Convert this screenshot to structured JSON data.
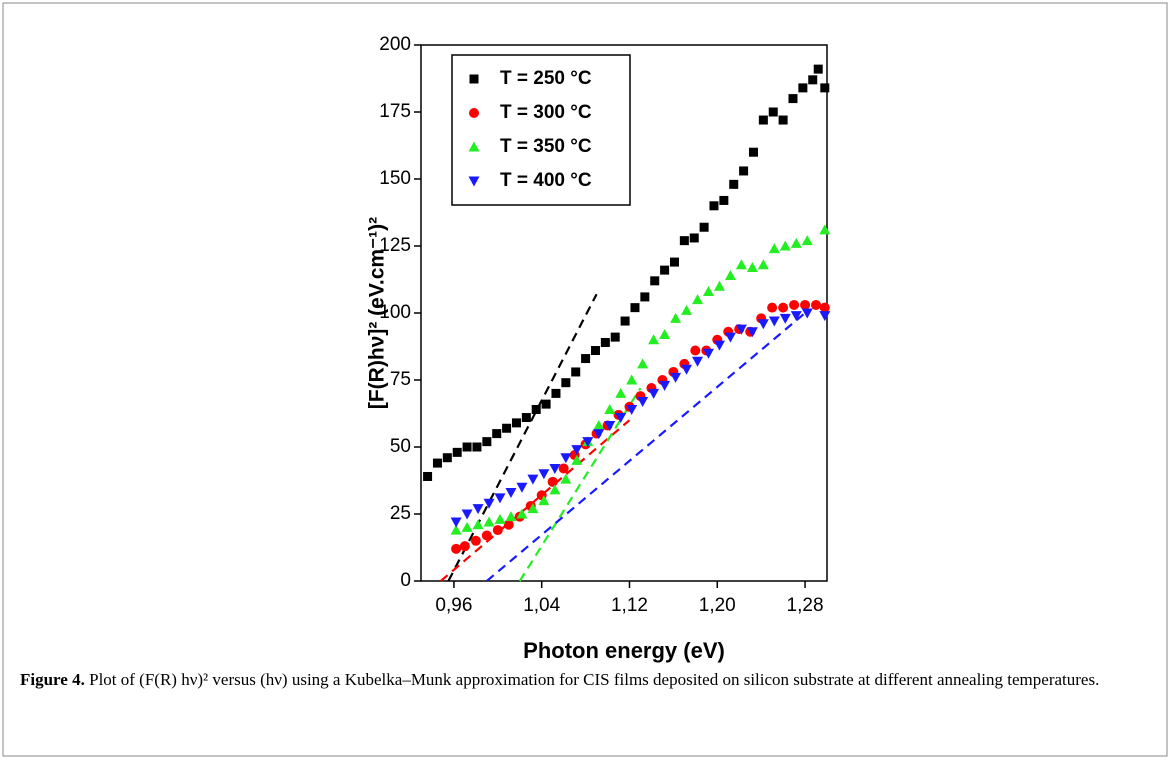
{
  "chart_data": {
    "type": "scatter",
    "x_label": "Photon energy (eV)",
    "y_label": "[F(R)hν]² (eV.cm⁻¹)²",
    "xlim": [
      0.93,
      1.3
    ],
    "ylim": [
      0,
      200
    ],
    "xticks": [
      {
        "value": 0.96,
        "label": "0,96"
      },
      {
        "value": 1.04,
        "label": "1,04"
      },
      {
        "value": 1.12,
        "label": "1,12"
      },
      {
        "value": 1.2,
        "label": "1,20"
      },
      {
        "value": 1.28,
        "label": "1,28"
      }
    ],
    "yticks": [
      0,
      25,
      50,
      75,
      100,
      125,
      150,
      175,
      200
    ],
    "legend": "upper left",
    "series": [
      {
        "name": "T = 250 °C",
        "color": "#000000",
        "marker": "square",
        "x": [
          0.936,
          0.945,
          0.954,
          0.963,
          0.972,
          0.981,
          0.99,
          0.999,
          1.008,
          1.017,
          1.026,
          1.035,
          1.044,
          1.053,
          1.062,
          1.071,
          1.08,
          1.089,
          1.098,
          1.107,
          1.116,
          1.125,
          1.134,
          1.143,
          1.152,
          1.161,
          1.17,
          1.179,
          1.188,
          1.197,
          1.206,
          1.215,
          1.224,
          1.233,
          1.242,
          1.251,
          1.26,
          1.269,
          1.278,
          1.287,
          1.292,
          1.298
        ],
        "values": [
          39,
          44,
          46,
          48,
          50,
          50,
          52,
          55,
          57,
          59,
          61,
          64,
          66,
          70,
          74,
          78,
          83,
          86,
          89,
          91,
          97,
          102,
          106,
          112,
          116,
          119,
          127,
          128,
          132,
          140,
          142,
          148,
          153,
          160,
          172,
          175,
          172,
          180,
          184,
          187,
          191,
          184
        ],
        "fit": {
          "x": [
            0.955,
            1.09
          ],
          "values": [
            0,
            107
          ]
        }
      },
      {
        "name": "T = 300 °C",
        "color": "#ff0000",
        "marker": "circle",
        "x": [
          0.962,
          0.97,
          0.98,
          0.99,
          1.0,
          1.01,
          1.02,
          1.03,
          1.04,
          1.05,
          1.06,
          1.07,
          1.08,
          1.09,
          1.1,
          1.11,
          1.12,
          1.13,
          1.14,
          1.15,
          1.16,
          1.17,
          1.18,
          1.19,
          1.2,
          1.21,
          1.22,
          1.23,
          1.24,
          1.25,
          1.26,
          1.27,
          1.28,
          1.29,
          1.298
        ],
        "values": [
          12,
          13,
          15,
          17,
          19,
          21,
          24,
          28,
          32,
          37,
          42,
          47,
          51,
          55,
          58,
          62,
          65,
          69,
          72,
          75,
          78,
          81,
          86,
          86,
          90,
          93,
          94,
          93,
          98,
          102,
          102,
          103,
          103,
          103,
          102
        ],
        "fit": {
          "x": [
            0.948,
            1.12
          ],
          "values": [
            0,
            60
          ]
        }
      },
      {
        "name": "T = 350 °C",
        "color": "#22ee22",
        "marker": "triangle-up",
        "x": [
          0.962,
          0.972,
          0.982,
          0.992,
          1.002,
          1.012,
          1.022,
          1.032,
          1.042,
          1.052,
          1.062,
          1.072,
          1.082,
          1.092,
          1.102,
          1.112,
          1.122,
          1.132,
          1.142,
          1.152,
          1.162,
          1.172,
          1.182,
          1.192,
          1.202,
          1.212,
          1.222,
          1.232,
          1.242,
          1.252,
          1.262,
          1.272,
          1.282,
          1.298
        ],
        "values": [
          19,
          20,
          21,
          22,
          23,
          24,
          25,
          27,
          30,
          34,
          38,
          45,
          52,
          58,
          64,
          70,
          75,
          81,
          90,
          92,
          98,
          101,
          105,
          108,
          110,
          114,
          118,
          117,
          118,
          124,
          125,
          126,
          127,
          131
        ],
        "fit": {
          "x": [
            1.02,
            1.13
          ],
          "values": [
            0,
            72
          ]
        }
      },
      {
        "name": "T = 400 °C",
        "color": "#1a1aff",
        "marker": "triangle-down",
        "x": [
          0.962,
          0.972,
          0.982,
          0.992,
          1.002,
          1.012,
          1.022,
          1.032,
          1.042,
          1.052,
          1.062,
          1.072,
          1.082,
          1.092,
          1.102,
          1.112,
          1.122,
          1.132,
          1.142,
          1.152,
          1.162,
          1.172,
          1.182,
          1.192,
          1.202,
          1.212,
          1.222,
          1.232,
          1.242,
          1.252,
          1.262,
          1.272,
          1.282,
          1.298
        ],
        "values": [
          22,
          25,
          27,
          29,
          31,
          33,
          35,
          38,
          40,
          42,
          46,
          49,
          52,
          55,
          58,
          61,
          64,
          67,
          70,
          73,
          76,
          79,
          82,
          85,
          88,
          91,
          94,
          93,
          96,
          97,
          98,
          99,
          100,
          99
        ],
        "fit": {
          "x": [
            0.99,
            1.28
          ],
          "values": [
            0,
            100
          ]
        }
      }
    ]
  },
  "caption": {
    "label": "Figure 4.",
    "text": "Plot of (F(R) hν)² versus (hν) using a Kubelka–Munk approximation for CIS films deposited on silicon substrate at different annealing temperatures."
  }
}
